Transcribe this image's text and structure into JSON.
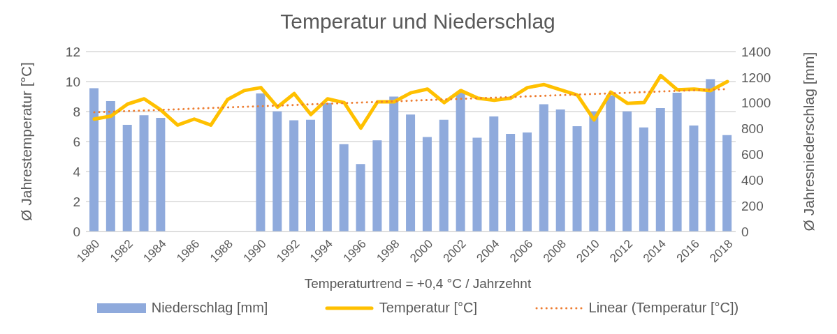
{
  "chart_data": {
    "type": "bar",
    "title": "Temperatur und Niederschlag",
    "xlabel": "Temperaturtrend = +0,4 °C / Jahrzehnt",
    "ylabel": "Ø Jahrestemperatur [°C]",
    "y2label": "Ø Jahresniederschlag [mm]",
    "categories": [
      "1980",
      null,
      "1982",
      null,
      "1984",
      null,
      "1986",
      null,
      "1988",
      null,
      "1990",
      null,
      "1992",
      null,
      "1994",
      null,
      "1996",
      null,
      "1998",
      null,
      "2000",
      null,
      "2002",
      null,
      "2004",
      null,
      "2006",
      null,
      "2008",
      null,
      "2010",
      null,
      "2012",
      null,
      "2014",
      null,
      "2016",
      null,
      "2018"
    ],
    "series": [
      {
        "name": "Niederschlag [mm]",
        "axis": "y2",
        "color": "#8faadc",
        "values": [
          1115,
          1015,
          830,
          905,
          885,
          null,
          null,
          null,
          null,
          null,
          1075,
          935,
          865,
          870,
          1000,
          680,
          525,
          710,
          1050,
          910,
          735,
          870,
          1085,
          730,
          895,
          760,
          770,
          990,
          950,
          820,
          935,
          1060,
          935,
          810,
          960,
          1080,
          825,
          1185,
          750
        ]
      },
      {
        "name": "Temperatur [°C]",
        "type": "line",
        "color": "#ffc000",
        "values": [
          7.5,
          7.7,
          8.5,
          8.85,
          8.1,
          7.1,
          7.5,
          7.1,
          8.8,
          9.4,
          9.6,
          8.3,
          9.2,
          7.8,
          8.85,
          8.6,
          6.9,
          8.65,
          8.65,
          9.25,
          9.5,
          8.6,
          9.4,
          8.9,
          8.75,
          8.9,
          9.6,
          9.8,
          9.45,
          9.1,
          7.45,
          9.3,
          8.55,
          8.6,
          10.4,
          9.45,
          9.5,
          9.4,
          10.0
        ]
      },
      {
        "name": "Linear (Temperatur [°C])",
        "type": "line",
        "line_style": "dotted",
        "color": "#ed7d31",
        "values": [
          7.95,
          null,
          null,
          null,
          null,
          null,
          null,
          null,
          null,
          null,
          null,
          null,
          null,
          null,
          null,
          null,
          null,
          null,
          null,
          null,
          null,
          null,
          null,
          null,
          null,
          null,
          null,
          null,
          null,
          null,
          null,
          null,
          null,
          null,
          null,
          null,
          null,
          null,
          9.5
        ]
      }
    ],
    "ylim": [
      0,
      12
    ],
    "yticks": [
      0,
      2,
      4,
      6,
      8,
      10,
      12
    ],
    "y2lim": [
      0,
      1400
    ],
    "y2ticks": [
      0,
      200,
      400,
      600,
      800,
      1000,
      1200,
      1400
    ],
    "grid": "y",
    "legend": "bottom"
  }
}
